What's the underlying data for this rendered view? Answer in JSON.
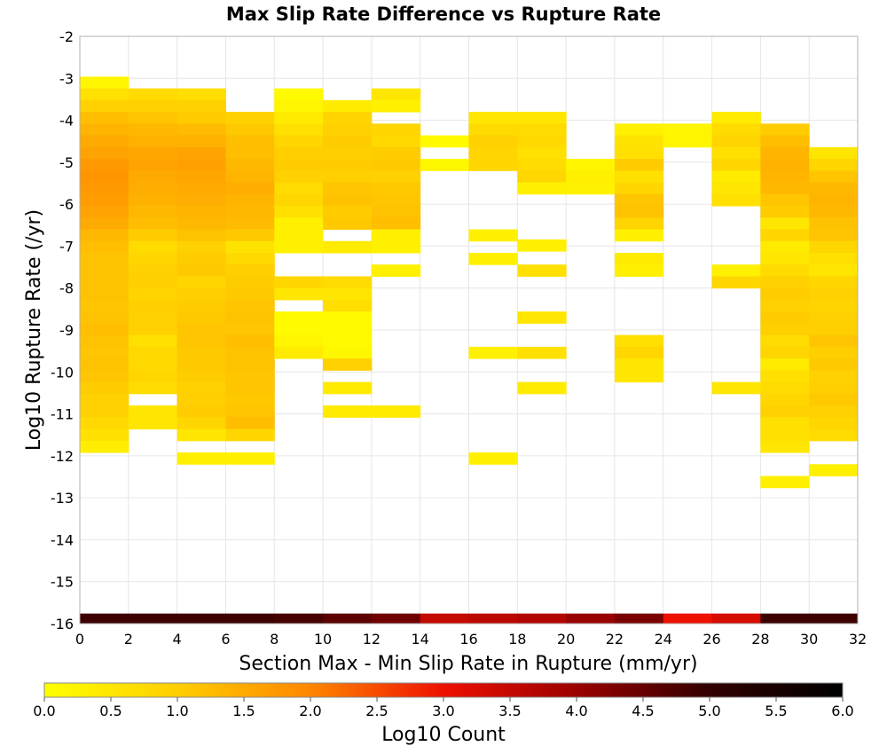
{
  "chart_data": {
    "type": "heatmap",
    "title": "Max Slip Rate Difference vs Rupture Rate",
    "xlabel": "Section Max - Min Slip Rate in Rupture (mm/yr)",
    "ylabel": "Log10 Rupture Rate (/yr)",
    "xlim": [
      0,
      32
    ],
    "ylim": [
      -16,
      -2
    ],
    "x_bin_width": 2,
    "y_bin_width": 0.28,
    "x_ticks": [
      "0",
      "2",
      "4",
      "6",
      "8",
      "10",
      "12",
      "14",
      "16",
      "18",
      "20",
      "22",
      "24",
      "26",
      "28",
      "30",
      "32"
    ],
    "y_ticks": [
      "-2",
      "-3",
      "-4",
      "-5",
      "-6",
      "-7",
      "-8",
      "-9",
      "-10",
      "-11",
      "-12",
      "-13",
      "-14",
      "-15",
      "-16"
    ],
    "grid": true,
    "colorbar": {
      "label": "Log10 Count",
      "range": [
        0,
        6
      ],
      "ticks": [
        "0.0",
        "0.5",
        "1.0",
        "1.5",
        "2.0",
        "2.5",
        "3.0",
        "3.5",
        "4.0",
        "4.5",
        "5.0",
        "5.5",
        "6.0"
      ],
      "colormap": [
        "#ffff00",
        "#ffcc00",
        "#ff8800",
        "#ee1100",
        "#990000",
        "#330000",
        "#000000"
      ],
      "placement": "bottom"
    },
    "cell_note": "each cell: [x_bin_start_mm_per_yr, log10_rate_bin_center, log10_count]",
    "cells": [
      [
        0,
        -3.1,
        0.2
      ],
      [
        0,
        -3.38,
        0.6
      ],
      [
        0,
        -3.66,
        0.9
      ],
      [
        0,
        -3.94,
        1.2
      ],
      [
        0,
        -4.22,
        1.35
      ],
      [
        0,
        -4.5,
        1.5
      ],
      [
        0,
        -4.78,
        1.6
      ],
      [
        0,
        -5.06,
        1.75
      ],
      [
        0,
        -5.34,
        1.8
      ],
      [
        0,
        -5.62,
        1.75
      ],
      [
        0,
        -5.9,
        1.7
      ],
      [
        0,
        -6.18,
        1.6
      ],
      [
        0,
        -6.46,
        1.5
      ],
      [
        0,
        -6.74,
        1.3
      ],
      [
        0,
        -7.02,
        1.2
      ],
      [
        0,
        -7.3,
        1.15
      ],
      [
        0,
        -7.58,
        1.15
      ],
      [
        0,
        -7.86,
        1.15
      ],
      [
        0,
        -8.14,
        1.15
      ],
      [
        0,
        -8.42,
        1.1
      ],
      [
        0,
        -8.7,
        1.15
      ],
      [
        0,
        -8.98,
        1.2
      ],
      [
        0,
        -9.26,
        1.15
      ],
      [
        0,
        -9.54,
        1.1
      ],
      [
        0,
        -9.82,
        1.15
      ],
      [
        0,
        -10.1,
        1.1
      ],
      [
        0,
        -10.38,
        1.0
      ],
      [
        0,
        -10.66,
        0.9
      ],
      [
        0,
        -10.94,
        0.9
      ],
      [
        0,
        -11.22,
        0.75
      ],
      [
        0,
        -11.5,
        0.6
      ],
      [
        0,
        -11.78,
        0.35
      ],
      [
        2,
        -3.38,
        0.7
      ],
      [
        2,
        -3.66,
        0.9
      ],
      [
        2,
        -3.94,
        1.1
      ],
      [
        2,
        -4.22,
        1.3
      ],
      [
        2,
        -4.5,
        1.4
      ],
      [
        2,
        -4.78,
        1.55
      ],
      [
        2,
        -5.06,
        1.6
      ],
      [
        2,
        -5.34,
        1.5
      ],
      [
        2,
        -5.62,
        1.45
      ],
      [
        2,
        -5.9,
        1.4
      ],
      [
        2,
        -6.18,
        1.3
      ],
      [
        2,
        -6.46,
        1.2
      ],
      [
        2,
        -6.74,
        1.0
      ],
      [
        2,
        -7.02,
        0.7
      ],
      [
        2,
        -7.3,
        0.8
      ],
      [
        2,
        -7.58,
        0.9
      ],
      [
        2,
        -7.86,
        0.95
      ],
      [
        2,
        -8.14,
        0.85
      ],
      [
        2,
        -8.42,
        0.95
      ],
      [
        2,
        -8.7,
        0.9
      ],
      [
        2,
        -8.98,
        0.9
      ],
      [
        2,
        -9.26,
        0.6
      ],
      [
        2,
        -9.54,
        0.75
      ],
      [
        2,
        -9.82,
        0.75
      ],
      [
        2,
        -10.1,
        0.8
      ],
      [
        2,
        -10.38,
        0.7
      ],
      [
        2,
        -10.94,
        0.5
      ],
      [
        2,
        -11.22,
        0.5
      ],
      [
        4,
        -3.38,
        0.65
      ],
      [
        4,
        -3.66,
        0.9
      ],
      [
        4,
        -3.94,
        1.0
      ],
      [
        4,
        -4.22,
        1.25
      ],
      [
        4,
        -4.5,
        1.4
      ],
      [
        4,
        -4.78,
        1.6
      ],
      [
        4,
        -5.06,
        1.65
      ],
      [
        4,
        -5.34,
        1.55
      ],
      [
        4,
        -5.62,
        1.5
      ],
      [
        4,
        -5.9,
        1.45
      ],
      [
        4,
        -6.18,
        1.35
      ],
      [
        4,
        -6.46,
        1.3
      ],
      [
        4,
        -6.74,
        1.15
      ],
      [
        4,
        -7.02,
        0.9
      ],
      [
        4,
        -7.3,
        1.0
      ],
      [
        4,
        -7.58,
        1.05
      ],
      [
        4,
        -7.86,
        0.8
      ],
      [
        4,
        -8.14,
        0.95
      ],
      [
        4,
        -8.42,
        1.0
      ],
      [
        4,
        -8.7,
        1.05
      ],
      [
        4,
        -8.98,
        1.1
      ],
      [
        4,
        -9.26,
        1.1
      ],
      [
        4,
        -9.54,
        1.05
      ],
      [
        4,
        -9.82,
        1.05
      ],
      [
        4,
        -10.1,
        1.0
      ],
      [
        4,
        -10.38,
        0.9
      ],
      [
        4,
        -10.66,
        0.95
      ],
      [
        4,
        -10.94,
        1.0
      ],
      [
        4,
        -11.22,
        0.8
      ],
      [
        4,
        -11.5,
        0.5
      ],
      [
        4,
        -12.06,
        0.3
      ],
      [
        6,
        -3.94,
        0.9
      ],
      [
        6,
        -4.22,
        1.05
      ],
      [
        6,
        -4.5,
        1.2
      ],
      [
        6,
        -4.78,
        1.2
      ],
      [
        6,
        -5.06,
        1.3
      ],
      [
        6,
        -5.34,
        1.35
      ],
      [
        6,
        -5.62,
        1.45
      ],
      [
        6,
        -5.9,
        1.35
      ],
      [
        6,
        -6.18,
        1.3
      ],
      [
        6,
        -6.46,
        1.25
      ],
      [
        6,
        -6.74,
        1.05
      ],
      [
        6,
        -7.02,
        0.55
      ],
      [
        6,
        -7.3,
        0.75
      ],
      [
        6,
        -7.58,
        0.95
      ],
      [
        6,
        -7.86,
        1.0
      ],
      [
        6,
        -8.14,
        1.05
      ],
      [
        6,
        -8.42,
        1.1
      ],
      [
        6,
        -8.7,
        1.15
      ],
      [
        6,
        -8.98,
        1.1
      ],
      [
        6,
        -9.26,
        1.2
      ],
      [
        6,
        -9.54,
        1.15
      ],
      [
        6,
        -9.82,
        1.15
      ],
      [
        6,
        -10.1,
        1.1
      ],
      [
        6,
        -10.38,
        1.1
      ],
      [
        6,
        -10.66,
        1.05
      ],
      [
        6,
        -10.94,
        1.1
      ],
      [
        6,
        -11.22,
        1.2
      ],
      [
        6,
        -11.5,
        0.8
      ],
      [
        6,
        -12.06,
        0.3
      ],
      [
        8,
        -3.38,
        0.1
      ],
      [
        8,
        -3.66,
        0.2
      ],
      [
        8,
        -3.94,
        0.4
      ],
      [
        8,
        -4.22,
        0.6
      ],
      [
        8,
        -4.5,
        0.8
      ],
      [
        8,
        -4.78,
        0.95
      ],
      [
        8,
        -5.06,
        1.0
      ],
      [
        8,
        -5.34,
        0.9
      ],
      [
        8,
        -5.62,
        0.7
      ],
      [
        8,
        -5.9,
        0.8
      ],
      [
        8,
        -6.18,
        0.6
      ],
      [
        8,
        -6.46,
        0.3
      ],
      [
        8,
        -6.74,
        0.3
      ],
      [
        8,
        -7.02,
        0.3
      ],
      [
        8,
        -7.86,
        0.8
      ],
      [
        8,
        -8.14,
        0.5
      ],
      [
        8,
        -8.7,
        0.1
      ],
      [
        8,
        -8.98,
        0.1
      ],
      [
        8,
        -9.26,
        0.2
      ],
      [
        8,
        -9.54,
        0.4
      ],
      [
        10,
        -3.66,
        0.4
      ],
      [
        10,
        -3.94,
        0.85
      ],
      [
        10,
        -4.22,
        0.9
      ],
      [
        10,
        -4.5,
        1.0
      ],
      [
        10,
        -4.78,
        0.95
      ],
      [
        10,
        -5.06,
        1.0
      ],
      [
        10,
        -5.34,
        0.95
      ],
      [
        10,
        -5.62,
        1.1
      ],
      [
        10,
        -5.9,
        1.15
      ],
      [
        10,
        -6.18,
        1.0
      ],
      [
        10,
        -6.46,
        1.05
      ],
      [
        10,
        -7.02,
        0.4
      ],
      [
        10,
        -7.86,
        0.7
      ],
      [
        10,
        -8.14,
        0.5
      ],
      [
        10,
        -8.42,
        0.65
      ],
      [
        10,
        -8.7,
        0.1
      ],
      [
        10,
        -8.98,
        0.1
      ],
      [
        10,
        -9.26,
        0.1
      ],
      [
        10,
        -9.54,
        0.15
      ],
      [
        10,
        -9.82,
        0.9
      ],
      [
        10,
        -10.38,
        0.4
      ],
      [
        10,
        -10.94,
        0.4
      ],
      [
        12,
        -3.38,
        0.5
      ],
      [
        12,
        -3.66,
        0.3
      ],
      [
        12,
        -4.22,
        0.8
      ],
      [
        12,
        -4.5,
        0.75
      ],
      [
        12,
        -4.78,
        1.0
      ],
      [
        12,
        -5.06,
        1.05
      ],
      [
        12,
        -5.34,
        0.9
      ],
      [
        12,
        -5.62,
        1.05
      ],
      [
        12,
        -5.9,
        1.1
      ],
      [
        12,
        -6.18,
        1.15
      ],
      [
        12,
        -6.46,
        1.2
      ],
      [
        12,
        -6.74,
        0.3
      ],
      [
        12,
        -7.02,
        0.3
      ],
      [
        12,
        -7.58,
        0.3
      ],
      [
        12,
        -10.94,
        0.4
      ],
      [
        14,
        -4.5,
        0.1
      ],
      [
        14,
        -5.06,
        0.15
      ],
      [
        16,
        -3.94,
        0.5
      ],
      [
        16,
        -4.22,
        0.7
      ],
      [
        16,
        -4.5,
        0.9
      ],
      [
        16,
        -4.78,
        0.85
      ],
      [
        16,
        -5.06,
        0.8
      ],
      [
        16,
        -6.74,
        0.3
      ],
      [
        16,
        -7.3,
        0.3
      ],
      [
        16,
        -9.54,
        0.3
      ],
      [
        16,
        -12.06,
        0.3
      ],
      [
        18,
        -3.94,
        0.5
      ],
      [
        18,
        -4.22,
        0.7
      ],
      [
        18,
        -4.5,
        0.75
      ],
      [
        18,
        -4.78,
        0.6
      ],
      [
        18,
        -5.06,
        0.7
      ],
      [
        18,
        -5.34,
        0.8
      ],
      [
        18,
        -5.62,
        0.3
      ],
      [
        18,
        -6.98,
        0.3
      ],
      [
        18,
        -7.58,
        0.6
      ],
      [
        18,
        -8.7,
        0.5
      ],
      [
        18,
        -9.54,
        0.6
      ],
      [
        18,
        -10.38,
        0.4
      ],
      [
        20,
        -5.06,
        0.2
      ],
      [
        20,
        -5.34,
        0.3
      ],
      [
        20,
        -5.62,
        0.25
      ],
      [
        22,
        -4.22,
        0.3
      ],
      [
        22,
        -4.5,
        0.55
      ],
      [
        22,
        -4.78,
        0.6
      ],
      [
        22,
        -5.06,
        1.0
      ],
      [
        22,
        -5.34,
        0.6
      ],
      [
        22,
        -5.62,
        0.8
      ],
      [
        22,
        -5.9,
        1.1
      ],
      [
        22,
        -6.18,
        1.15
      ],
      [
        22,
        -6.46,
        0.85
      ],
      [
        22,
        -6.74,
        0.3
      ],
      [
        22,
        -7.3,
        0.4
      ],
      [
        22,
        -7.58,
        0.3
      ],
      [
        22,
        -9.26,
        0.6
      ],
      [
        22,
        -9.54,
        0.8
      ],
      [
        22,
        -9.82,
        0.5
      ],
      [
        22,
        -10.1,
        0.5
      ],
      [
        24,
        -4.22,
        0.2
      ],
      [
        24,
        -4.5,
        0.2
      ],
      [
        26,
        -3.94,
        0.4
      ],
      [
        26,
        -4.22,
        0.7
      ],
      [
        26,
        -4.5,
        0.85
      ],
      [
        26,
        -4.78,
        0.6
      ],
      [
        26,
        -5.06,
        0.8
      ],
      [
        26,
        -5.34,
        0.4
      ],
      [
        26,
        -5.62,
        0.5
      ],
      [
        26,
        -5.9,
        0.6
      ],
      [
        26,
        -7.58,
        0.3
      ],
      [
        26,
        -7.86,
        0.8
      ],
      [
        26,
        -10.38,
        0.5
      ],
      [
        28,
        -4.22,
        1.0
      ],
      [
        28,
        -4.5,
        1.2
      ],
      [
        28,
        -4.78,
        1.35
      ],
      [
        28,
        -5.06,
        1.4
      ],
      [
        28,
        -5.34,
        1.35
      ],
      [
        28,
        -5.62,
        1.3
      ],
      [
        28,
        -5.9,
        1.1
      ],
      [
        28,
        -6.18,
        1.0
      ],
      [
        28,
        -6.46,
        0.5
      ],
      [
        28,
        -6.74,
        0.8
      ],
      [
        28,
        -7.02,
        0.4
      ],
      [
        28,
        -7.3,
        0.5
      ],
      [
        28,
        -7.58,
        0.7
      ],
      [
        28,
        -7.86,
        0.9
      ],
      [
        28,
        -8.14,
        1.0
      ],
      [
        28,
        -8.42,
        0.9
      ],
      [
        28,
        -8.7,
        1.0
      ],
      [
        28,
        -8.98,
        0.95
      ],
      [
        28,
        -9.26,
        0.7
      ],
      [
        28,
        -9.54,
        0.8
      ],
      [
        28,
        -9.82,
        0.4
      ],
      [
        28,
        -10.1,
        0.6
      ],
      [
        28,
        -10.38,
        0.7
      ],
      [
        28,
        -10.66,
        0.8
      ],
      [
        28,
        -10.94,
        0.9
      ],
      [
        28,
        -11.22,
        0.6
      ],
      [
        28,
        -11.5,
        0.6
      ],
      [
        28,
        -11.78,
        0.5
      ],
      [
        28,
        -12.62,
        0.3
      ],
      [
        30,
        -4.78,
        0.5
      ],
      [
        30,
        -5.06,
        0.8
      ],
      [
        30,
        -5.34,
        1.1
      ],
      [
        30,
        -5.62,
        1.3
      ],
      [
        30,
        -5.9,
        1.35
      ],
      [
        30,
        -6.18,
        1.3
      ],
      [
        30,
        -6.46,
        1.15
      ],
      [
        30,
        -6.74,
        1.1
      ],
      [
        30,
        -7.02,
        0.8
      ],
      [
        30,
        -7.3,
        0.6
      ],
      [
        30,
        -7.58,
        0.5
      ],
      [
        30,
        -7.86,
        0.8
      ],
      [
        30,
        -8.14,
        0.9
      ],
      [
        30,
        -8.42,
        0.85
      ],
      [
        30,
        -8.7,
        0.9
      ],
      [
        30,
        -8.98,
        0.95
      ],
      [
        30,
        -9.26,
        1.1
      ],
      [
        30,
        -9.54,
        0.95
      ],
      [
        30,
        -9.82,
        1.05
      ],
      [
        30,
        -10.1,
        0.9
      ],
      [
        30,
        -10.38,
        0.95
      ],
      [
        30,
        -10.66,
        1.05
      ],
      [
        30,
        -10.94,
        0.9
      ],
      [
        30,
        -11.22,
        0.8
      ],
      [
        30,
        -11.5,
        0.7
      ],
      [
        30,
        -12.34,
        0.3
      ]
    ],
    "edge_row": {
      "log10_rate_center": -15.9,
      "values": [
        4.9,
        4.9,
        4.9,
        4.9,
        4.8,
        4.6,
        4.4,
        3.5,
        3.6,
        3.7,
        4.0,
        4.3,
        3.0,
        3.3,
        4.9,
        4.9
      ]
    }
  }
}
